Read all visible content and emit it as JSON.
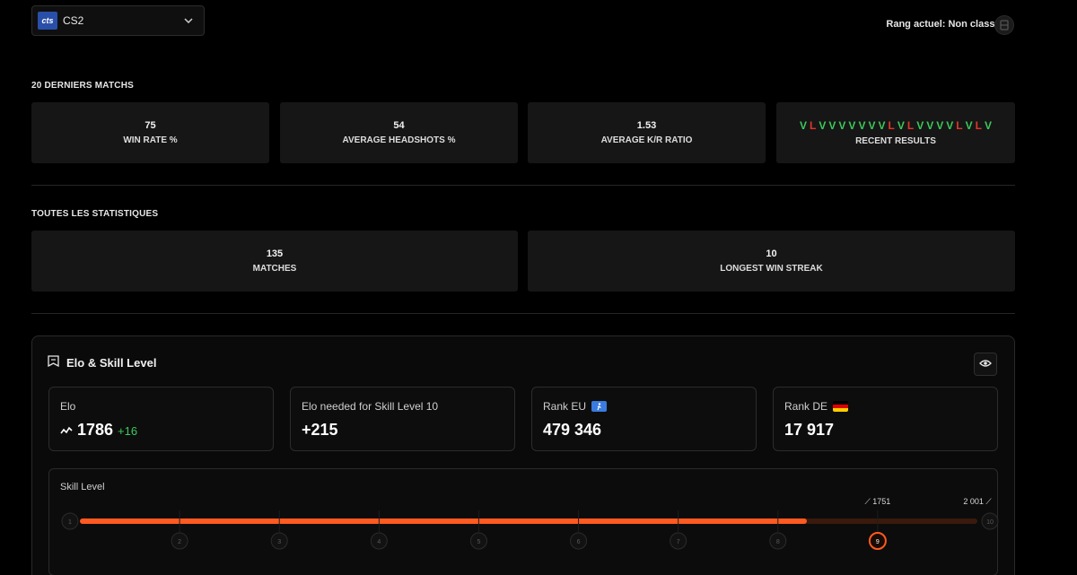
{
  "header": {
    "game_logo_text": "cts",
    "game_name": "CS2",
    "rank_label": "Rang actuel: Non classé(e)"
  },
  "recent": {
    "title": "20 DERNIERS MATCHS",
    "stats": [
      {
        "value": "75",
        "label": "WIN RATE %"
      },
      {
        "value": "54",
        "label": "AVERAGE HEADSHOTS %"
      },
      {
        "value": "1.53",
        "label": "AVERAGE K/R RATIO"
      }
    ],
    "results_label": "RECENT RESULTS",
    "results": [
      "V",
      "L",
      "V",
      "V",
      "V",
      "V",
      "V",
      "V",
      "V",
      "L",
      "V",
      "L",
      "V",
      "V",
      "V",
      "V",
      "L",
      "V",
      "L",
      "V"
    ]
  },
  "all": {
    "title": "TOUTES LES STATISTIQUES",
    "stats": [
      {
        "value": "135",
        "label": "MATCHES"
      },
      {
        "value": "10",
        "label": "LONGEST WIN STREAK"
      }
    ]
  },
  "elo": {
    "title": "Elo & Skill Level",
    "cards": [
      {
        "label": "Elo",
        "value": "1786",
        "delta": "+16"
      },
      {
        "label": "Elo needed for Skill Level 10",
        "value": "+215"
      },
      {
        "label": "Rank EU",
        "value": "479 346"
      },
      {
        "label": "Rank DE",
        "value": "17 917"
      }
    ],
    "skill": {
      "title": "Skill Level",
      "current_level": 9,
      "progress_fraction": 0.81,
      "marker_current": "1751",
      "marker_next": "2 001",
      "levels": [
        "1",
        "2",
        "3",
        "4",
        "5",
        "6",
        "7",
        "8",
        "9",
        "10"
      ],
      "accent_color": "#ff5a1f",
      "track_color": "#3a1a0c"
    }
  }
}
